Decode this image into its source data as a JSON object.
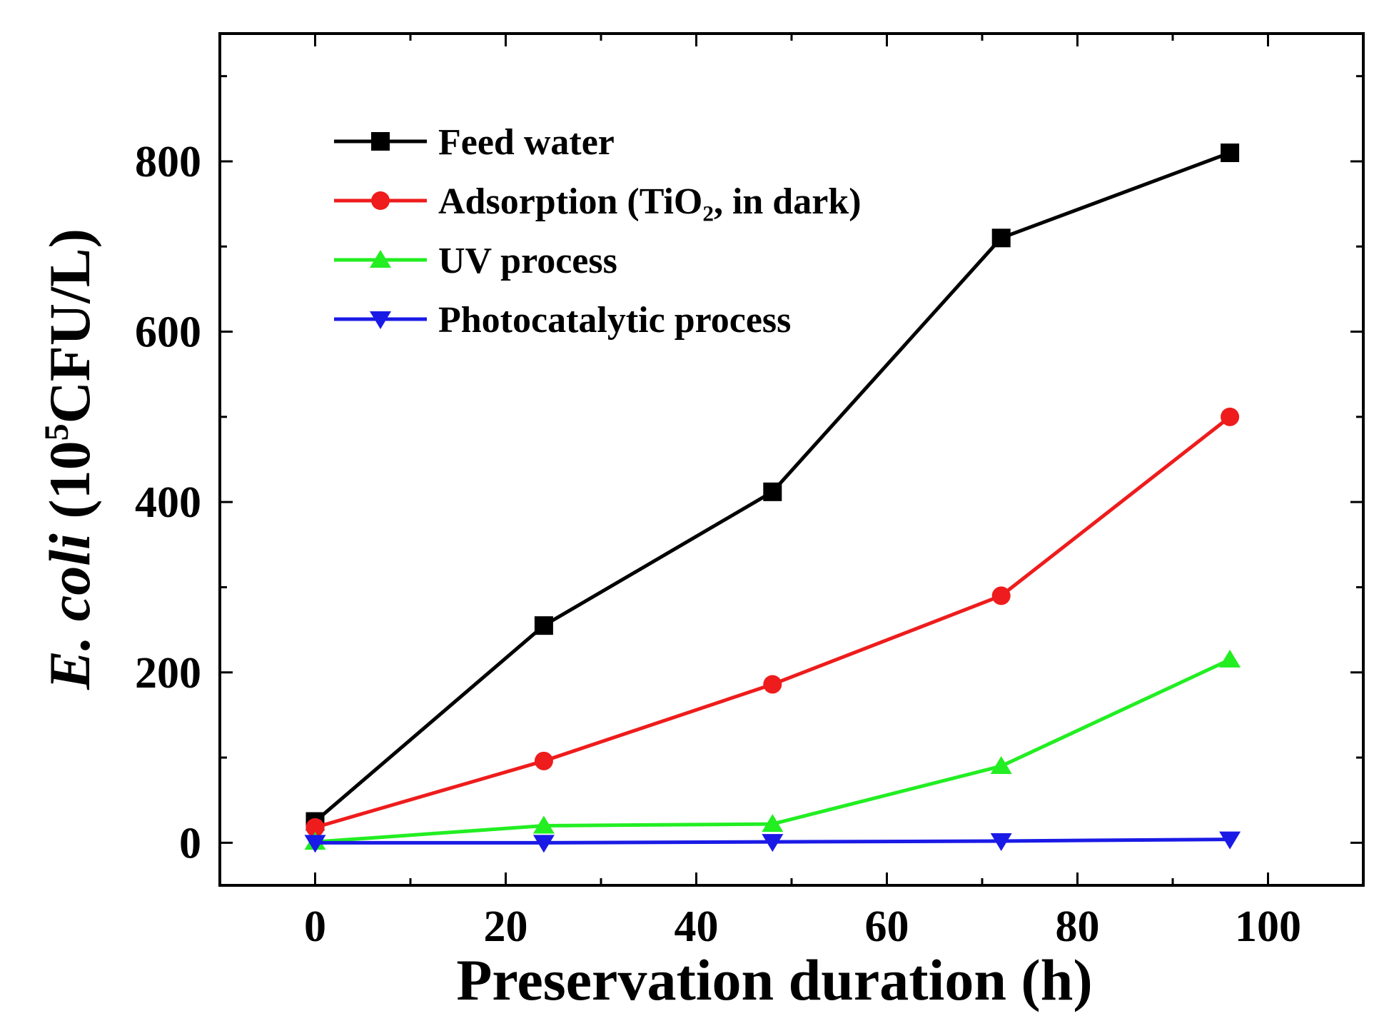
{
  "chart_data": {
    "type": "line",
    "title": "",
    "xlabel": "Preservation duration (h)",
    "ylabel": {
      "italic_part": "E. coli",
      "open": " (10",
      "superscript": "5",
      "close": "CFU/L)"
    },
    "xlim": [
      -10,
      110
    ],
    "ylim": [
      -50,
      950
    ],
    "x_ticks": [
      0,
      20,
      40,
      60,
      80,
      100
    ],
    "y_ticks": [
      0,
      200,
      400,
      600,
      800
    ],
    "x_tick_labels": [
      "0",
      "20",
      "40",
      "60",
      "80",
      "100"
    ],
    "y_tick_labels": [
      "0",
      "200",
      "400",
      "600",
      "800"
    ],
    "x_minor_step": 10,
    "y_minor_step": 100,
    "grid": false,
    "legend_position": "top-left",
    "x": [
      0,
      24,
      48,
      72,
      96
    ],
    "series": [
      {
        "name": "Feed water",
        "color": "#000000",
        "marker": "square",
        "values": [
          25,
          255,
          412,
          710,
          810
        ]
      },
      {
        "name": "Adsorption (TiO₂, in dark)",
        "color": "#ee1c1c",
        "marker": "circle",
        "values": [
          18,
          96,
          186,
          290,
          500
        ]
      },
      {
        "name": "UV process",
        "color": "#22ee22",
        "marker": "triangle-up",
        "values": [
          1,
          20,
          22,
          90,
          215
        ]
      },
      {
        "name": "Photocatalytic process",
        "color": "#1a1ae6",
        "marker": "triangle-down",
        "values": [
          0,
          0,
          1,
          2,
          4
        ]
      }
    ]
  }
}
